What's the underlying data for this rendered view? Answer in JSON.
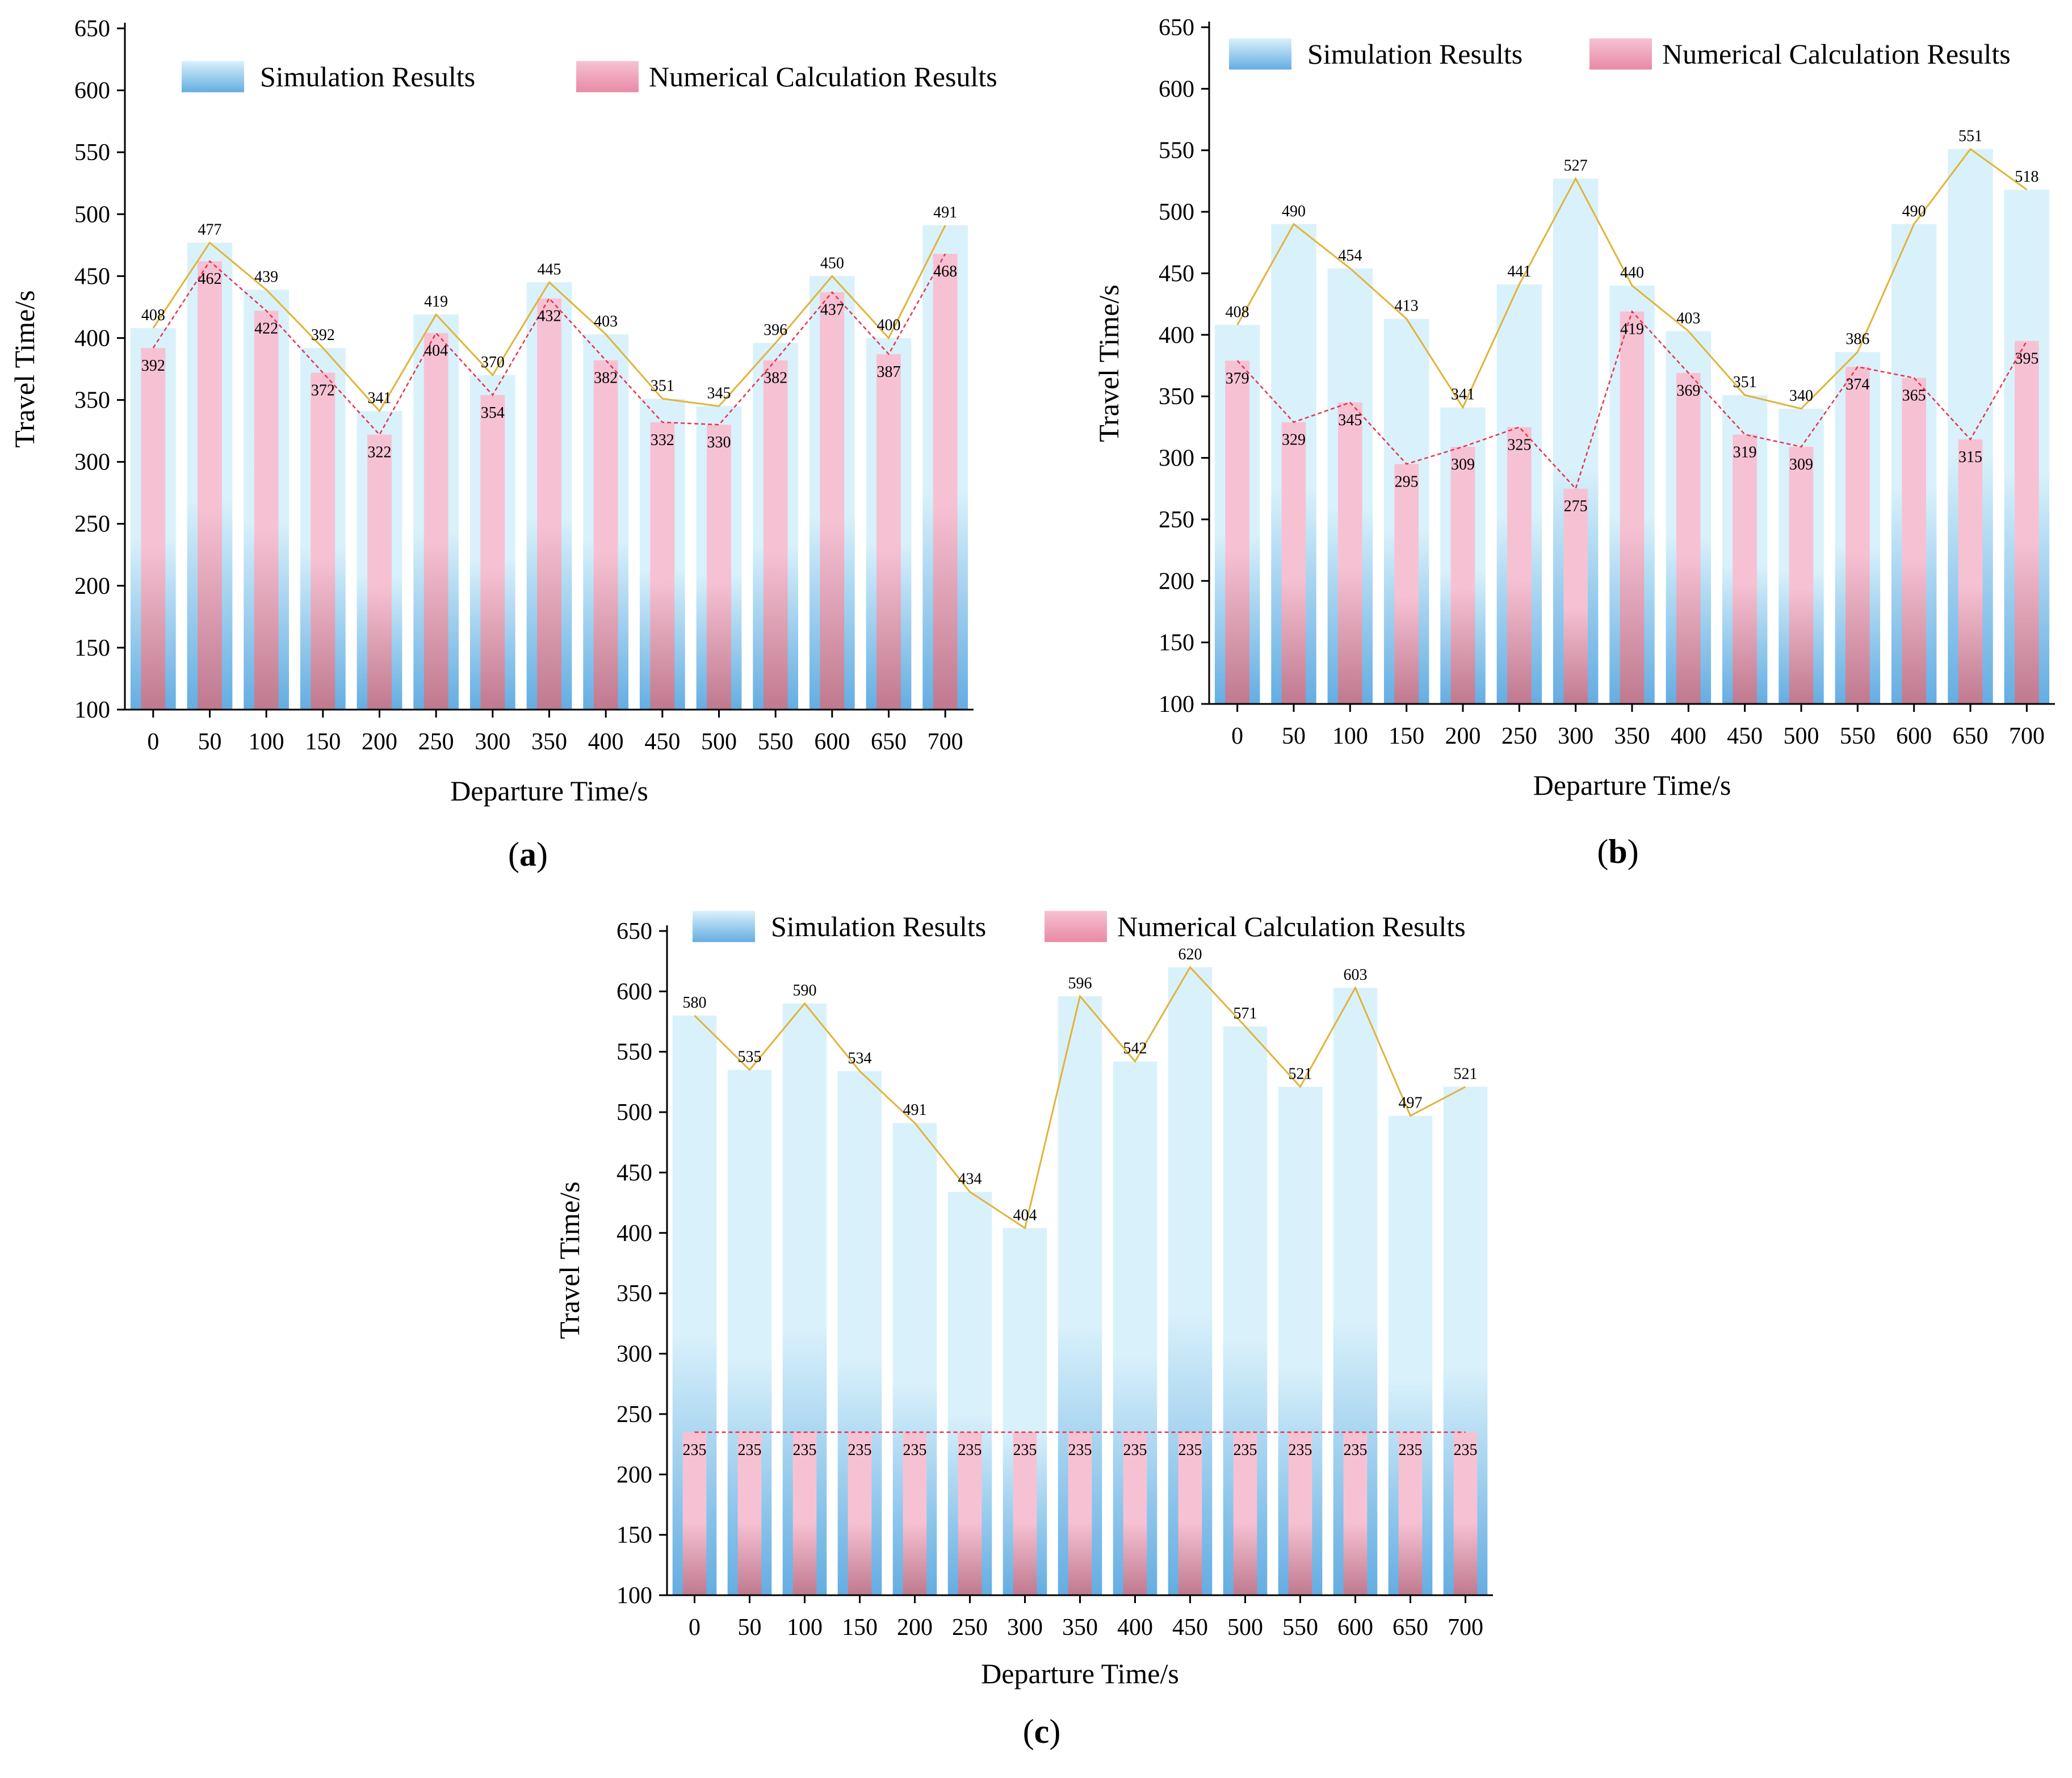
{
  "colors": {
    "sim_bar_top": "#d9f1fb",
    "sim_bar_bottom": "#64ade2",
    "num_bar_top": "#f6c2d3",
    "num_bar_bottom": "#c0798f",
    "sim_line": "#e2b33a",
    "num_line": "#e8334a"
  },
  "chart_data": [
    {
      "type": "bar",
      "panel": "a",
      "panel_label": "a",
      "xlabel": "Departure Time/s",
      "ylabel": "Travel Time/s",
      "ylim": [
        100,
        650
      ],
      "yticks": [
        100,
        150,
        200,
        250,
        300,
        350,
        400,
        450,
        500,
        550,
        600,
        650
      ],
      "categories": [
        "0",
        "50",
        "100",
        "150",
        "200",
        "250",
        "300",
        "350",
        "400",
        "450",
        "500",
        "550",
        "600",
        "650",
        "700"
      ],
      "legend": [
        "Simulation Results",
        "Numerical Calculation Results"
      ],
      "series": [
        {
          "name": "Simulation Results",
          "values": [
            408,
            477,
            439,
            392,
            341,
            419,
            370,
            445,
            403,
            351,
            345,
            396,
            450,
            400,
            491
          ]
        },
        {
          "name": "Numerical Calculation Results",
          "values": [
            392,
            462,
            422,
            372,
            322,
            404,
            354,
            432,
            382,
            332,
            330,
            382,
            437,
            387,
            468
          ]
        }
      ]
    },
    {
      "type": "bar",
      "panel": "b",
      "panel_label": "b",
      "xlabel": "Departure Time/s",
      "ylabel": "Travel Time/s",
      "ylim": [
        100,
        650
      ],
      "yticks": [
        100,
        150,
        200,
        250,
        300,
        350,
        400,
        450,
        500,
        550,
        600,
        650
      ],
      "categories": [
        "0",
        "50",
        "100",
        "150",
        "200",
        "250",
        "300",
        "350",
        "400",
        "450",
        "500",
        "550",
        "600",
        "650",
        "700"
      ],
      "legend": [
        "Simulation Results",
        "Numerical Calculation Results"
      ],
      "series": [
        {
          "name": "Simulation Results",
          "values": [
            408,
            490,
            454,
            413,
            341,
            441,
            527,
            440,
            403,
            351,
            340,
            386,
            490,
            551,
            518
          ]
        },
        {
          "name": "Numerical Calculation Results",
          "values": [
            379,
            329,
            345,
            295,
            309,
            325,
            275,
            419,
            369,
            319,
            309,
            374,
            365,
            315,
            395
          ]
        }
      ]
    },
    {
      "type": "bar",
      "panel": "c",
      "panel_label": "c",
      "xlabel": "Departure Time/s",
      "ylabel": "Travel Time/s",
      "ylim": [
        100,
        650
      ],
      "yticks": [
        100,
        150,
        200,
        250,
        300,
        350,
        400,
        450,
        500,
        550,
        600,
        650
      ],
      "categories": [
        "0",
        "50",
        "100",
        "150",
        "200",
        "250",
        "300",
        "350",
        "400",
        "450",
        "500",
        "550",
        "600",
        "650",
        "700"
      ],
      "legend": [
        "Simulation Results",
        "Numerical Calculation Results"
      ],
      "series": [
        {
          "name": "Simulation Results",
          "values": [
            580,
            535,
            590,
            534,
            491,
            434,
            404,
            596,
            542,
            620,
            571,
            521,
            603,
            497,
            521
          ]
        },
        {
          "name": "Numerical Calculation Results",
          "values": [
            235,
            235,
            235,
            235,
            235,
            235,
            235,
            235,
            235,
            235,
            235,
            235,
            235,
            235,
            235
          ]
        }
      ]
    }
  ]
}
